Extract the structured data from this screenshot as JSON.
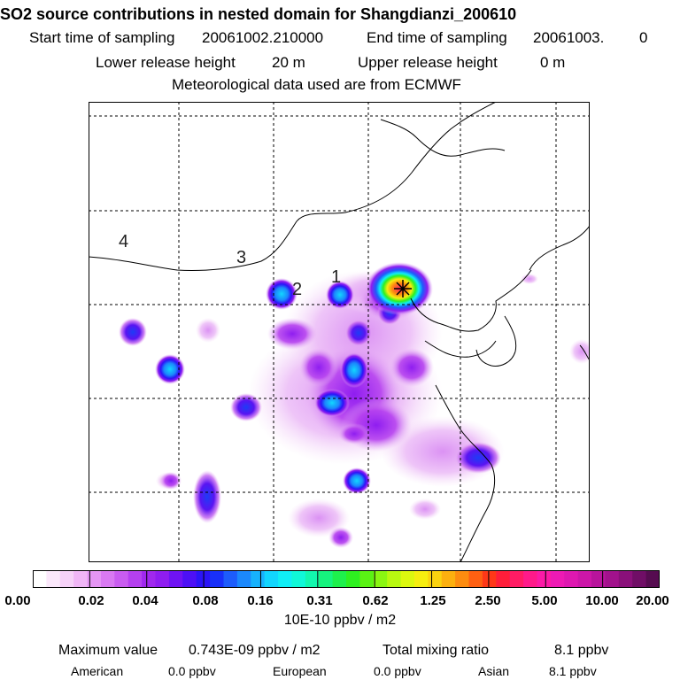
{
  "title": "SO2 source contributions in nested domain for Shangdianzi_200610",
  "header": {
    "start_label": "Start time of sampling",
    "start_value": "20061002.210000",
    "end_label": "End time of sampling",
    "end_value": "20061003.",
    "end_suffix": "0",
    "lower_label": "Lower release height",
    "lower_value": "20 m",
    "upper_label": "Upper release height",
    "upper_value": "0 m",
    "met_line": "Meteorological data used are from ECMWF"
  },
  "map": {
    "contour_labels": [
      "4",
      "3",
      "2",
      "1"
    ],
    "receptor_marker": "star"
  },
  "colorbar": {
    "tick_labels": [
      "0.00",
      "0.02",
      "0.04",
      "0.08",
      "0.16",
      "0.31",
      "0.62",
      "1.25",
      "2.50",
      "5.00",
      "10.00",
      "20.00"
    ],
    "unit": "10E-10 ppbv / m2",
    "colors": [
      "#ffffff",
      "#fbe8fb",
      "#f6d2f8",
      "#f0b6f6",
      "#e596f4",
      "#d979f2",
      "#c95cf0",
      "#b540ef",
      "#a028ee",
      "#8f1df0",
      "#6f13f3",
      "#4d10f5",
      "#2b14f7",
      "#1830f9",
      "#1d5cfb",
      "#1b88fc",
      "#17b2fd",
      "#12d6fe",
      "#10eef6",
      "#10f8d8",
      "#12f7ae",
      "#16f37e",
      "#1ef04c",
      "#2ef020",
      "#5af214",
      "#8af612",
      "#b8f810",
      "#dcf80f",
      "#f6ee0f",
      "#fad20f",
      "#fcb00f",
      "#fd8c10",
      "#fe6012",
      "#fe3818",
      "#fe1e3a",
      "#ff1c64",
      "#fe1a8a",
      "#fb1aa6",
      "#ee1ab4",
      "#de18b0",
      "#cc16a8",
      "#b8149c",
      "#a2128c",
      "#8a107a",
      "#700e66",
      "#560c50"
    ]
  },
  "stats": {
    "max_label": "Maximum value",
    "max_value": "0.743E-09 ppbv / m2",
    "total_label": "Total mixing ratio",
    "total_value": "8.1 ppbv",
    "american_label": "American",
    "american_value": "0.0 ppbv",
    "european_label": "European",
    "european_value": "0.0 ppbv",
    "asian_label": "Asian",
    "asian_value": "8.1 ppbv"
  }
}
